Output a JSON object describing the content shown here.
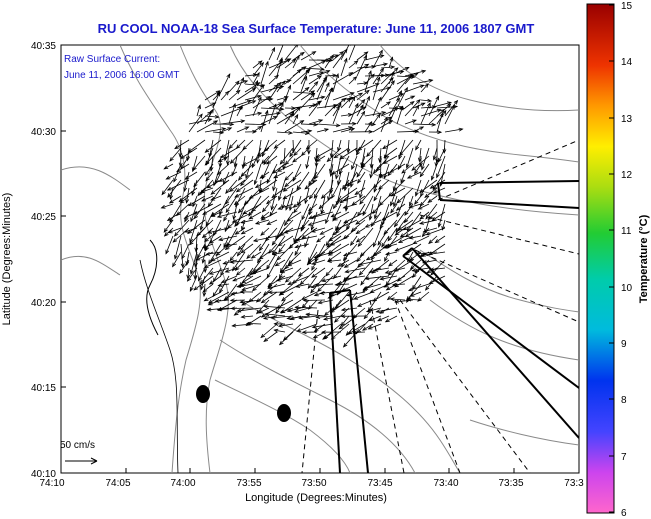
{
  "title": "RU COOL  NOAA-18  Sea Surface Temperature:  June 11, 2006 1807 GMT",
  "inset": {
    "line1": "Raw Surface Current:",
    "line2": "June 11, 2006 16:00 GMT"
  },
  "scale_label": "50 cm/s",
  "x_axis": {
    "label": "Longitude (Degrees:Minutes)",
    "ticks": [
      "74:10",
      "74:05",
      "74:00",
      "73:55",
      "73:50",
      "73:45",
      "73:40",
      "73:35",
      "73:3"
    ]
  },
  "y_axis": {
    "label": "Latitude (Degrees:Minutes)",
    "ticks": [
      "40:35",
      "40:30",
      "40:25",
      "40:20",
      "40:15",
      "40:10"
    ]
  },
  "colorbar": {
    "label": "Temperature (°C)",
    "ticks": [
      "15",
      "14",
      "13",
      "12",
      "11",
      "10",
      "9",
      "8",
      "7",
      "6"
    ],
    "min": 6,
    "max": 15
  },
  "colors": {
    "title": "#1a1acc",
    "vectors": "#000000",
    "contours": "#8a8a8a"
  }
}
